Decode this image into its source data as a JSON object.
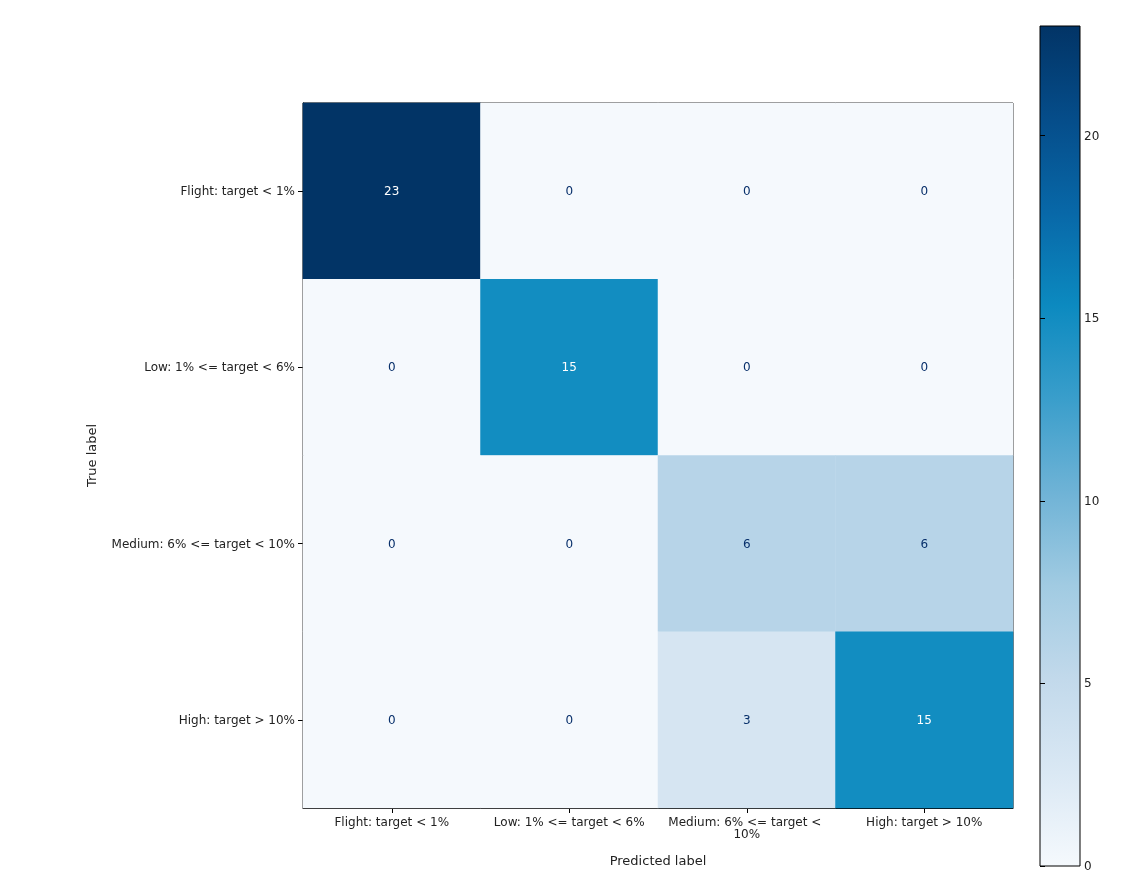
{
  "chart_data": {
    "type": "heatmap",
    "xlabel": "Predicted label",
    "ylabel": "True label",
    "categories": [
      "Flight: target < 1%",
      "Low: 1% <= target < 6%",
      "Medium: 6% <= target < 10%",
      "High: target > 10%"
    ],
    "y_categories": [
      "Flight: target < 1%",
      "Low: 1% <= target < 6%",
      "Medium: 6% <= target < 10%",
      "High: target > 10%"
    ],
    "cells": [
      [
        23,
        0,
        0,
        0
      ],
      [
        0,
        15,
        0,
        0
      ],
      [
        0,
        0,
        6,
        6
      ],
      [
        0,
        0,
        3,
        15
      ]
    ],
    "data_labels": true,
    "grid": false,
    "clim": [
      0,
      23
    ],
    "cticks": [
      0,
      5,
      10,
      15,
      20
    ]
  }
}
